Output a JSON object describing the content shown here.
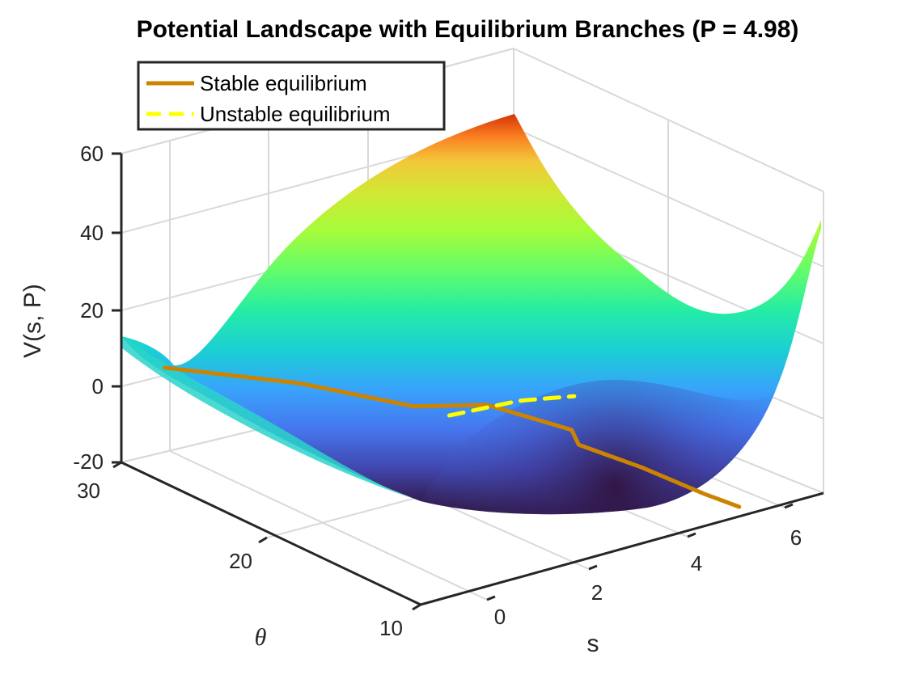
{
  "chart_data": {
    "type": "surface",
    "title": "Potential Landscape with Equilibrium Branches (P = 4.98)",
    "xlabel": "s",
    "ylabel": "θ",
    "zlabel": "V(s, P)",
    "xlim": [
      -1,
      7
    ],
    "ylim": [
      10,
      30
    ],
    "zlim": [
      -20,
      60
    ],
    "xticks": [
      "0",
      "2",
      "4",
      "6"
    ],
    "yticks": [
      "10",
      "20",
      "30"
    ],
    "zticks": [
      "-20",
      "0",
      "20",
      "40",
      "60"
    ],
    "grid": true,
    "colormap": "turbo",
    "legend": {
      "position": "top-left",
      "entries": [
        {
          "name": "Stable equilibrium",
          "color": "#cc8400",
          "style": "solid"
        },
        {
          "name": "Unstable equilibrium",
          "color": "#ffff00",
          "style": "dashed"
        }
      ]
    },
    "surface": {
      "s": [
        -1,
        7
      ],
      "theta": [
        10,
        30
      ],
      "corner_values": {
        "s=-1,θ=30": 12,
        "s=7,θ=30": 62,
        "s=7,θ=10": 40,
        "s=3.5,θ=10": -14
      }
    },
    "series": [
      {
        "name": "Stable equilibrium",
        "points": [
          [
            -0.2,
            29.8,
            2
          ],
          [
            1.8,
            27.5,
            -5
          ],
          [
            3.4,
            25.2,
            -12.5
          ],
          [
            3.9,
            22,
            -8
          ],
          [
            4.1,
            17,
            -6
          ],
          [
            4.0,
            16.2,
            -8
          ],
          [
            4.6,
            14,
            -12
          ],
          [
            5.2,
            11.8,
            -17
          ],
          [
            5.5,
            10.5,
            -19
          ]
        ]
      },
      {
        "name": "Unstable equilibrium",
        "points": [
          [
            3.45,
            23,
            -11
          ],
          [
            3.8,
            19.5,
            -2
          ],
          [
            4.0,
            16.5,
            4
          ]
        ]
      }
    ]
  }
}
